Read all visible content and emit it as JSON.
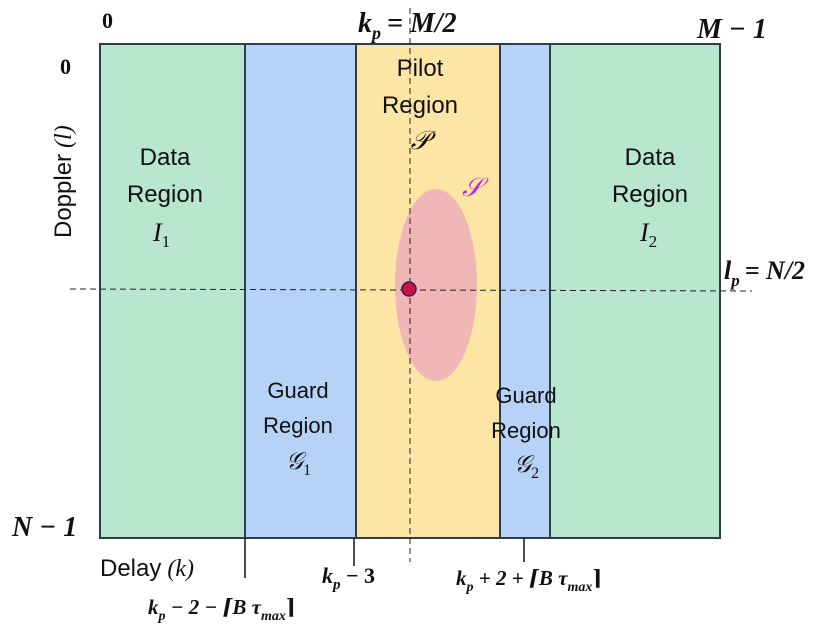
{
  "colors": {
    "data_region": "#b9e6cf",
    "guard_region": "#b7d2f7",
    "pilot_region": "#fde5a6",
    "spread_ellipse": "#f0b0b8",
    "pilot_dot": "#cc1144",
    "border": "#2f3e4d",
    "set_s_label": "#c026d3"
  },
  "axes": {
    "top_left_zero": "0",
    "left_top_zero": "0",
    "top_right": "M − 1",
    "bottom_left": "N − 1",
    "top_center_kp": "k",
    "top_center_kp_sub": "p",
    "top_center_kp_rhs": "= M/2",
    "right_lp": "l",
    "right_lp_sub": "p",
    "right_lp_rhs": "= N/2",
    "doppler_label": "Doppler",
    "doppler_var": "(l)",
    "delay_label": "Delay",
    "delay_var": "(k)"
  },
  "regions": {
    "data_left": {
      "line1": "Data",
      "line2": "Region",
      "sym": "I",
      "sub": "1"
    },
    "data_right": {
      "line1": "Data",
      "line2": "Region",
      "sym": "I",
      "sub": "2"
    },
    "guard_left": {
      "line1": "Guard",
      "line2": "Region",
      "sym": "𝒢",
      "sub": "1"
    },
    "guard_right": {
      "line1": "Guard",
      "line2": "Region",
      "sym": "𝒢",
      "sub": "2"
    },
    "pilot": {
      "line1": "Pilot",
      "line2": "Region",
      "sym": "𝒫"
    },
    "spread_set": "𝒮"
  },
  "bottom_labels": {
    "kp_minus_3": {
      "k": "k",
      "sub": "p",
      "rest": " − 3"
    },
    "kp_minus_2": {
      "k": "k",
      "sub": "p",
      "rest": " − 2 − ⌈B τ",
      "sub2": "max",
      "end": "⌉"
    },
    "kp_plus_2": {
      "k": "k",
      "sub": "p",
      "rest": " + 2 + ⌈B τ",
      "sub2": "max",
      "end": "⌉"
    }
  }
}
